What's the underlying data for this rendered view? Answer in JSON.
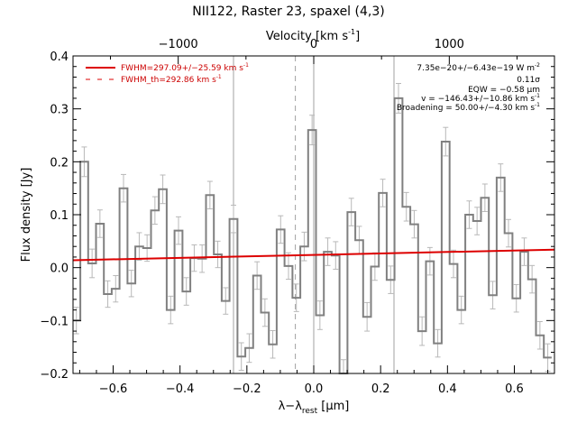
{
  "chart_data": {
    "type": "line",
    "title": "NII122, Raster 23, spaxel (4,3)",
    "xlabel_main": "λ−λ",
    "xlabel_sub": "rest",
    "xlabel_unit": " [μm]",
    "ylabel": "Flux density [Jy]",
    "top_axis_label": "Velocity [km s",
    "top_axis_label_sup": "-1",
    "top_axis_label_end": "]",
    "xlim": [
      -0.72,
      0.72
    ],
    "ylim": [
      -0.2,
      0.4
    ],
    "top_xlim": [
      -1776,
      1776
    ],
    "x_ticks": [
      -0.6,
      -0.4,
      -0.2,
      0.0,
      0.2,
      0.4,
      0.6
    ],
    "x_tick_labels": [
      "−0.6",
      "−0.4",
      "−0.2",
      "0.0",
      "0.2",
      "0.4",
      "0.6"
    ],
    "y_ticks": [
      -0.2,
      -0.1,
      0.0,
      0.1,
      0.2,
      0.3,
      0.4
    ],
    "y_tick_labels": [
      "−0.2",
      "−0.1",
      "0.0",
      "0.1",
      "0.2",
      "0.3",
      "0.4"
    ],
    "top_ticks": [
      -1000,
      0,
      1000
    ],
    "top_tick_labels": [
      "−1000",
      "0",
      "1000"
    ],
    "vertical_lines_solid": [
      -0.24,
      0.0,
      0.24
    ],
    "vertical_line_dashed": -0.055,
    "spectrum": {
      "name": "data",
      "bin_width": 0.0235,
      "x": [
        -0.71,
        -0.6865,
        -0.663,
        -0.6395,
        -0.616,
        -0.5925,
        -0.569,
        -0.5455,
        -0.522,
        -0.4985,
        -0.475,
        -0.4515,
        -0.428,
        -0.4045,
        -0.381,
        -0.3575,
        -0.334,
        -0.3105,
        -0.287,
        -0.2635,
        -0.24,
        -0.2165,
        -0.193,
        -0.1695,
        -0.146,
        -0.1225,
        -0.099,
        -0.0755,
        -0.052,
        -0.0285,
        -0.005,
        0.0185,
        0.042,
        0.0655,
        0.089,
        0.1125,
        0.136,
        0.1595,
        0.183,
        0.2065,
        0.23,
        0.2535,
        0.277,
        0.3005,
        0.324,
        0.3475,
        0.371,
        0.3945,
        0.418,
        0.4415,
        0.465,
        0.4885,
        0.512,
        0.5355,
        0.559,
        0.5825,
        0.606,
        0.6295,
        0.653,
        0.6765,
        0.7
      ],
      "y": [
        -0.1,
        0.2,
        0.008,
        0.083,
        -0.05,
        -0.04,
        0.15,
        -0.03,
        0.04,
        0.037,
        0.108,
        0.148,
        -0.08,
        0.07,
        -0.045,
        0.018,
        0.017,
        0.137,
        0.025,
        -0.063,
        0.092,
        -0.168,
        -0.152,
        -0.015,
        -0.085,
        -0.145,
        0.072,
        0.003,
        -0.057,
        0.04,
        0.26,
        -0.09,
        0.03,
        0.023,
        -0.2,
        0.105,
        0.052,
        -0.093,
        0.002,
        0.141,
        -0.023,
        0.32,
        0.115,
        0.082,
        -0.12,
        0.012,
        -0.143,
        0.238,
        0.007,
        -0.08,
        0.1,
        0.088,
        0.132,
        -0.052,
        0.17,
        0.065,
        -0.058,
        0.03,
        -0.022,
        -0.128,
        -0.17
      ],
      "errors": [
        0.025,
        0.028,
        0.027,
        0.026,
        0.025,
        0.025,
        0.026,
        0.025,
        0.026,
        0.025,
        0.026,
        0.027,
        0.026,
        0.026,
        0.026,
        0.025,
        0.026,
        0.026,
        0.025,
        0.025,
        0.026,
        0.026,
        0.027,
        0.026,
        0.026,
        0.026,
        0.026,
        0.025,
        0.026,
        0.027,
        0.028,
        0.027,
        0.026,
        0.026,
        0.026,
        0.026,
        0.026,
        0.027,
        0.026,
        0.026,
        0.026,
        0.028,
        0.027,
        0.026,
        0.027,
        0.026,
        0.026,
        0.027,
        0.026,
        0.026,
        0.026,
        0.026,
        0.026,
        0.026,
        0.026,
        0.026,
        0.026,
        0.026,
        0.026,
        0.026,
        0.026
      ]
    },
    "fit": {
      "name": "FWHM=297.09+/−25.59 km s",
      "name_sup": "-1",
      "x": [
        -0.72,
        0.72
      ],
      "y": [
        0.014,
        0.034
      ],
      "color": "#dd0000"
    },
    "legend": [
      {
        "label": "FWHM=297.09+/−25.59 km s",
        "sup": "-1",
        "style": "solid",
        "color": "#dd0000"
      },
      {
        "label": "FWHM_th=292.86 km s",
        "sup": "-1",
        "style": "dashed",
        "color": "#dd0000"
      }
    ],
    "legend_position": "top-left",
    "annotations": [
      {
        "text": "7.35e−20+/−6.43e−19 W m",
        "sup": "-2"
      },
      {
        "text": "0.11σ",
        "sup": ""
      },
      {
        "text": "EQW = −0.58 μm",
        "sup": ""
      },
      {
        "text": "v = −146.43+/−10.86 km s",
        "sup": "-1"
      },
      {
        "text": "Broadening = 50.00+/−4.30 km s",
        "sup": "-1"
      }
    ],
    "annotations_position": "top-right",
    "colors": {
      "data": "#808080",
      "errorbars": "#b8b8b8",
      "fit": "#dd0000",
      "vlines": "#a0a0a0"
    }
  }
}
